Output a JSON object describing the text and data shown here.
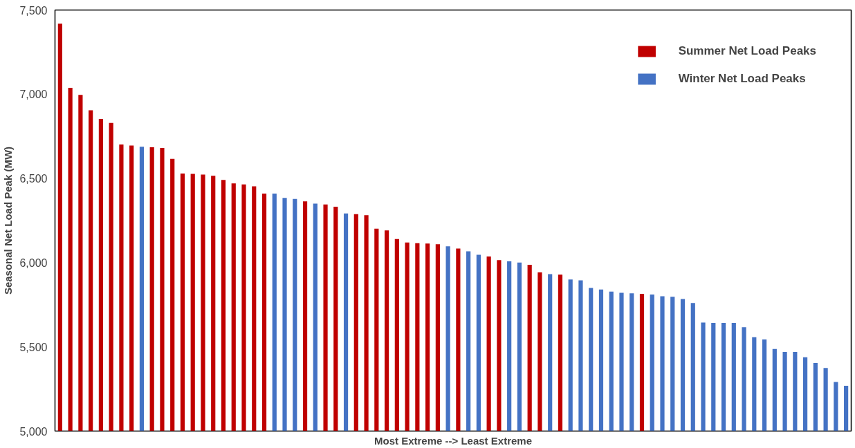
{
  "chart_data": {
    "type": "bar",
    "xlabel": "Most Extreme --> Least Extreme",
    "ylabel": "Seasonal Net Load Peak (MW)",
    "categories": [
      null,
      null,
      null,
      null,
      null,
      null,
      null,
      null,
      null,
      null,
      null,
      null,
      null,
      null,
      null,
      null,
      null,
      null,
      null,
      null,
      null,
      null,
      null,
      null,
      null,
      null,
      null,
      null,
      null,
      null,
      null,
      null,
      null,
      null,
      null,
      null,
      null,
      null,
      null,
      null,
      null,
      null,
      null,
      null,
      null,
      null,
      null,
      null,
      null,
      null,
      null,
      null,
      null,
      null,
      null,
      null,
      null,
      null,
      null,
      null,
      null,
      null,
      null,
      null,
      null,
      null,
      null,
      null,
      null,
      null,
      null,
      null,
      null,
      null,
      null,
      null,
      null,
      null
    ],
    "series": [
      {
        "name": "Summer Net Load Peaks",
        "color": "#c00000",
        "values": [
          7419,
          7038,
          6996,
          6905,
          6853,
          6830,
          6702,
          6695,
          null,
          6685,
          6681,
          6616,
          6529,
          6527,
          6523,
          6516,
          6491,
          6471,
          6464,
          6453,
          6410,
          null,
          null,
          null,
          6364,
          null,
          6345,
          6332,
          null,
          6288,
          6282,
          6202,
          6192,
          6140,
          6120,
          6116,
          6113,
          6109,
          null,
          6084,
          null,
          null,
          6037,
          6015,
          null,
          null,
          5987,
          5942,
          null,
          5929,
          null,
          null,
          null,
          null,
          null,
          null,
          null,
          5815,
          null,
          null,
          null,
          null,
          null,
          null,
          null,
          null,
          null,
          null,
          null,
          null,
          null,
          null,
          null,
          null,
          null,
          null,
          null,
          null
        ]
      },
      {
        "name": "Winter Net Load Peaks",
        "color": "#4472c4",
        "values": [
          null,
          null,
          null,
          null,
          null,
          null,
          null,
          null,
          6688,
          null,
          null,
          null,
          null,
          null,
          null,
          null,
          null,
          null,
          null,
          null,
          null,
          6410,
          6384,
          6378,
          null,
          6351,
          null,
          null,
          6292,
          null,
          null,
          null,
          null,
          null,
          null,
          null,
          null,
          null,
          6097,
          null,
          6067,
          6047,
          null,
          null,
          6008,
          6001,
          null,
          null,
          5932,
          null,
          5900,
          5895,
          5850,
          5841,
          5828,
          5821,
          5818,
          null,
          5811,
          5801,
          5797,
          5784,
          5760,
          5645,
          5642,
          5642,
          5642,
          5617,
          5557,
          5544,
          5487,
          5470,
          5470,
          5438,
          5404,
          5375,
          5291,
          5269
        ]
      }
    ],
    "ylim": [
      5000,
      7500
    ],
    "yticks": [
      {
        "value": 5000,
        "label": "5,000"
      },
      {
        "value": 5500,
        "label": "5,500"
      },
      {
        "value": 6000,
        "label": "6,000"
      },
      {
        "value": 6500,
        "label": "6,500"
      },
      {
        "value": 7000,
        "label": "7,000"
      },
      {
        "value": 7500,
        "label": "7,500"
      }
    ],
    "legend": "top right",
    "grid": false
  }
}
